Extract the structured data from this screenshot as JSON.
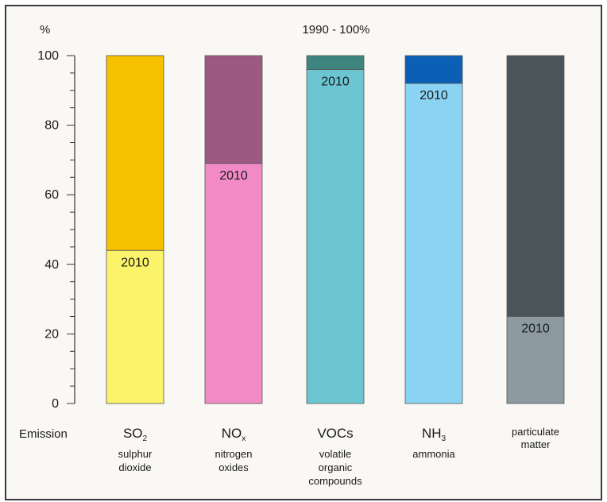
{
  "chart_data": {
    "type": "bar",
    "title": "1990  - 100%",
    "ylabel": "%",
    "xlabel": "Emission",
    "ylim": [
      0,
      100
    ],
    "yticks": [
      0,
      20,
      40,
      60,
      80,
      100
    ],
    "bar_label": "2010",
    "categories": [
      {
        "symbol": "SO",
        "sub": "2",
        "desc": [
          "sulphur",
          "dioxide"
        ],
        "value_1990": 100,
        "value_2010": 44,
        "color_1990": "#f6c200",
        "color_2010": "#fbf36a"
      },
      {
        "symbol": "NO",
        "sub": "x",
        "desc": [
          "nitrogen",
          "oxides"
        ],
        "value_1990": 100,
        "value_2010": 69,
        "color_1990": "#9c5a80",
        "color_2010": "#f28ac8"
      },
      {
        "symbol": "VOCs",
        "sub": "",
        "desc": [
          "volatile",
          "organic",
          "compounds"
        ],
        "value_1990": 100,
        "value_2010": 96,
        "color_1990": "#3d857e",
        "color_2010": "#6cc6d2"
      },
      {
        "symbol": "NH",
        "sub": "3",
        "desc": [
          "ammonia"
        ],
        "value_1990": 100,
        "value_2010": 92,
        "color_1990": "#0b5fb5",
        "color_2010": "#8bd3f2"
      },
      {
        "symbol": "particulate",
        "sub": "",
        "desc": [
          "matter"
        ],
        "value_1990": 100,
        "value_2010": 25,
        "color_1990": "#4b5458",
        "color_2010": "#8c9aa0"
      }
    ]
  }
}
